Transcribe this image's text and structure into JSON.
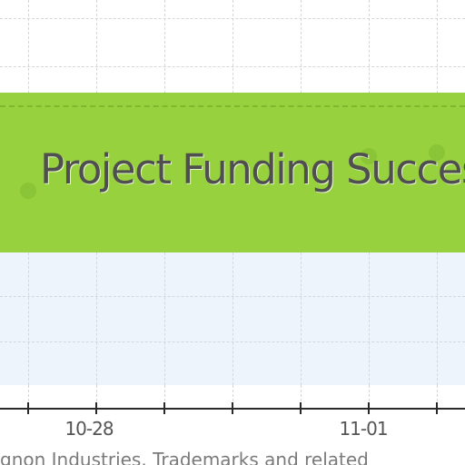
{
  "banner": {
    "title": "Project Funding Succes"
  },
  "axis": {
    "ticks": [
      "10-28",
      "11-01"
    ]
  },
  "footer": {
    "text": "gnon Industries.  Trademarks and related"
  },
  "colors": {
    "banner": "#97d13e",
    "plot_band": "#eef4fb",
    "axis": "#2a2a2a",
    "text": "#555555"
  }
}
